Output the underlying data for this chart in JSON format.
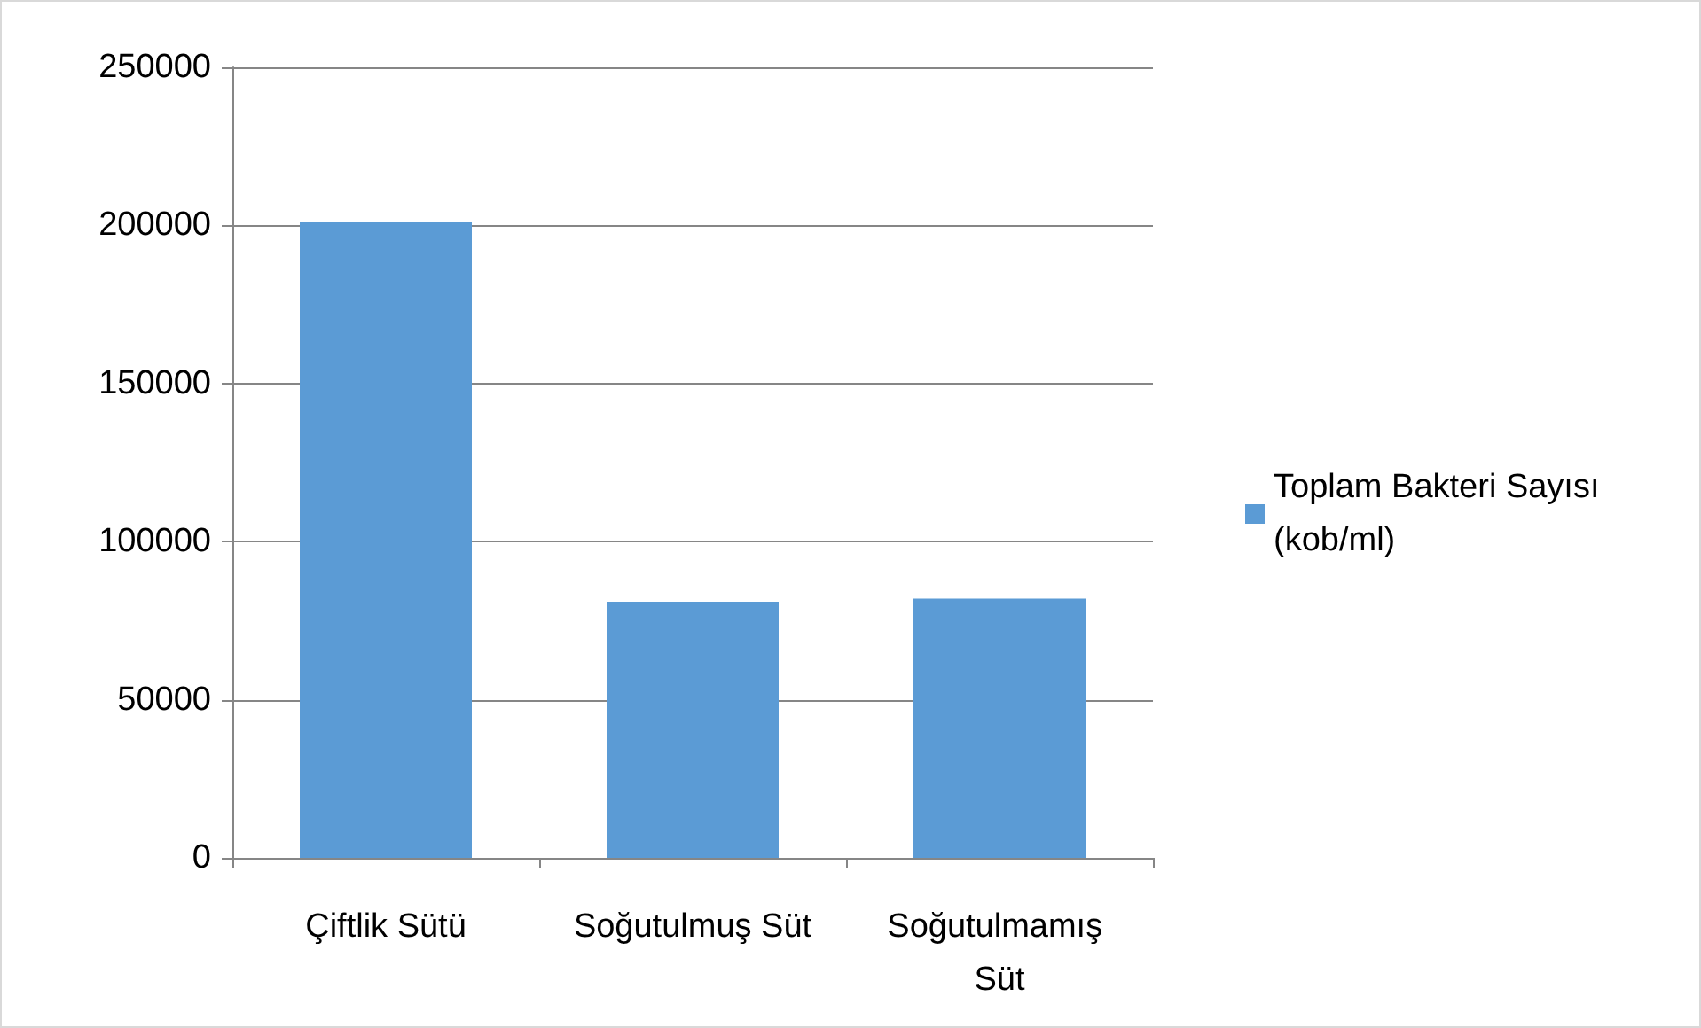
{
  "chart_data": {
    "type": "bar",
    "categories": [
      "Çiftlik Sütü",
      "Soğutulmuş Süt",
      "Soğutulmamış Süt"
    ],
    "series": [
      {
        "name": "Toplam Bakteri Sayısı (kob/ml)",
        "color": "#5b9bd5",
        "values": [
          201000,
          81000,
          82000
        ]
      }
    ],
    "ylim": [
      0,
      250000
    ],
    "yticks": [
      0,
      50000,
      100000,
      150000,
      200000,
      250000
    ],
    "grid": "y",
    "legend": "right"
  }
}
